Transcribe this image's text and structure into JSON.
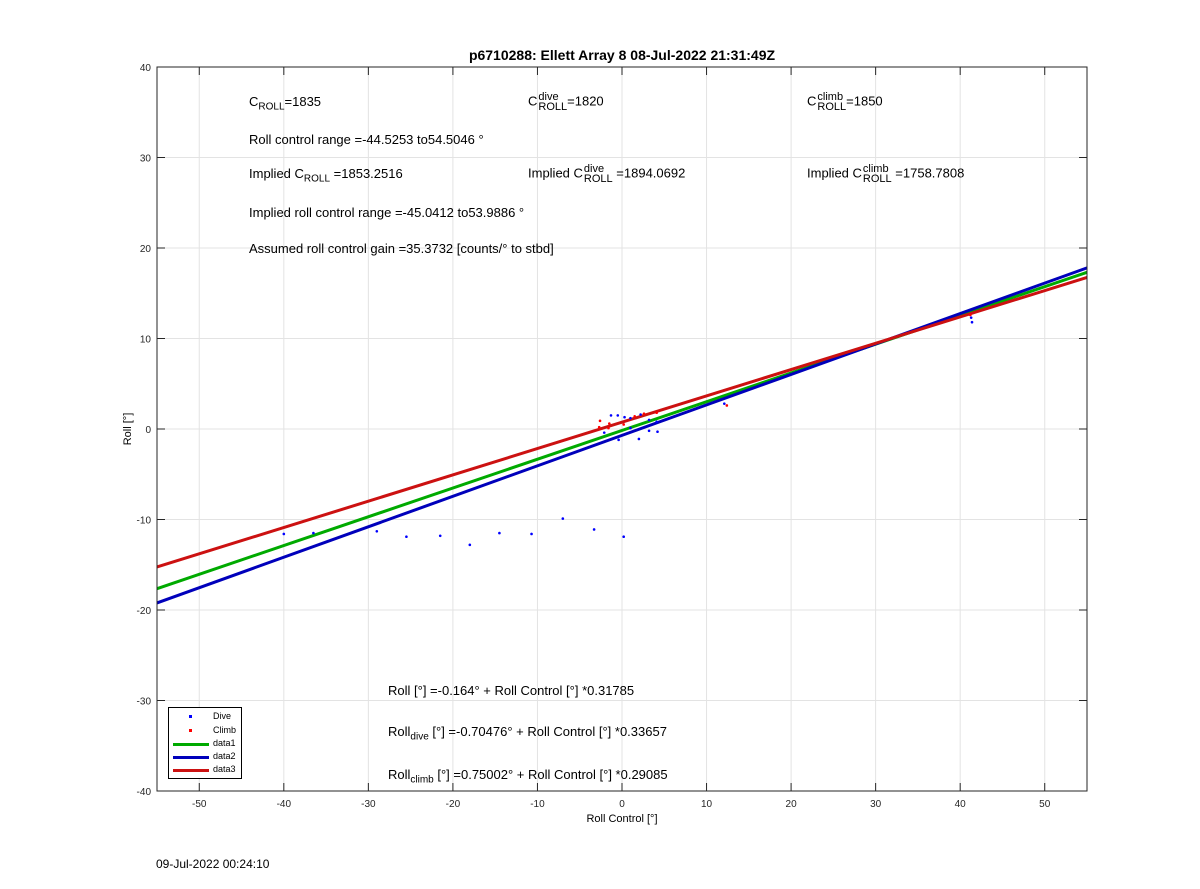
{
  "chart_data": {
    "type": "scatter",
    "title": "p6710288: Ellett Array 8 08-Jul-2022 21:31:49Z",
    "xlabel": "Roll Control [°]",
    "ylabel": "Roll [°]",
    "xlim": [
      -55,
      55
    ],
    "ylim": [
      -40,
      40
    ],
    "xticks": [
      -50,
      -40,
      -30,
      -20,
      -10,
      0,
      10,
      20,
      30,
      40,
      50
    ],
    "yticks": [
      -40,
      -30,
      -20,
      -10,
      0,
      10,
      20,
      30,
      40
    ],
    "grid": true,
    "legend_position": "bottom-left",
    "series": [
      {
        "name": "Dive",
        "kind": "points",
        "color": "#0000ff",
        "points": [
          [
            -40,
            -11.6
          ],
          [
            -36.5,
            -11.5
          ],
          [
            -29,
            -11.3
          ],
          [
            -25.5,
            -11.9
          ],
          [
            -21.5,
            -11.8
          ],
          [
            -18,
            -12.8
          ],
          [
            -14.5,
            -11.5
          ],
          [
            -10.7,
            -11.6
          ],
          [
            -7,
            -9.9
          ],
          [
            -3.3,
            -11.1
          ],
          [
            0.2,
            -11.9
          ],
          [
            -1.3,
            1.5
          ],
          [
            -0.5,
            1.5
          ],
          [
            0.3,
            1.3
          ],
          [
            1,
            1.2
          ],
          [
            2.2,
            1.6
          ],
          [
            3.2,
            1.0
          ],
          [
            4.1,
            0.8
          ],
          [
            -0.4,
            -1.2
          ],
          [
            2,
            -1.1
          ],
          [
            3.2,
            -0.2
          ],
          [
            4.2,
            -0.3
          ],
          [
            -2.1,
            -0.4
          ],
          [
            1,
            0.1
          ],
          [
            12.1,
            2.8
          ],
          [
            41.3,
            12.3
          ],
          [
            41.4,
            11.8
          ]
        ]
      },
      {
        "name": "Climb",
        "kind": "points",
        "color": "#ff0000",
        "points": [
          [
            -2.7,
            0.2
          ],
          [
            -2.6,
            0.9
          ],
          [
            -1.6,
            0.1
          ],
          [
            -1.5,
            0.6
          ],
          [
            0.2,
            0.5
          ],
          [
            1.5,
            1.4
          ],
          [
            2.6,
            1.7
          ],
          [
            4.1,
            1.8
          ],
          [
            12.4,
            2.6
          ],
          [
            41.2,
            12.6
          ]
        ]
      },
      {
        "name": "data1",
        "kind": "line",
        "color": "#00aa00",
        "intercept": -0.164,
        "slope": 0.31785
      },
      {
        "name": "data2",
        "kind": "line",
        "color": "#0000bb",
        "intercept": -0.70476,
        "slope": 0.33657
      },
      {
        "name": "data3",
        "kind": "line",
        "color": "#cc1111",
        "intercept": 0.75002,
        "slope": 0.29085
      }
    ],
    "annotations": {
      "c_roll_label": "C",
      "c_roll_sub": "ROLL",
      "c_roll_value": "=1835",
      "c_dive_label": "C",
      "c_dive_sup": "dive",
      "c_dive_sub": "ROLL",
      "c_dive_value": "=1820",
      "c_climb_label": "C",
      "c_climb_sup": "climb",
      "c_climb_sub": "ROLL",
      "c_climb_value": "=1850",
      "roll_range": "Roll control range =-44.5253 to54.5046 °",
      "implied_c_roll_prefix": "Implied C",
      "implied_c_roll_sub": "ROLL",
      "implied_c_roll_value": " =1853.2516",
      "implied_dive_prefix": "Implied C",
      "implied_dive_sup": "dive",
      "implied_dive_sub": "ROLL",
      "implied_dive_value": " =1894.0692",
      "implied_climb_prefix": "Implied C",
      "implied_climb_sup": "climb",
      "implied_climb_sub": "ROLL",
      "implied_climb_value": " =1758.7808",
      "implied_range": "Implied roll control range =-45.0412 to53.9886 °",
      "gain": "Assumed roll control gain =35.3732 [counts/° to stbd]",
      "fit_all": "Roll [°] =-0.164° + Roll Control [°] *0.31785",
      "fit_dive_prefix": "Roll",
      "fit_dive_sub": "dive",
      "fit_dive_rest": " [°] =-0.70476° + Roll Control [°] *0.33657",
      "fit_climb_prefix": "Roll",
      "fit_climb_sub": "climb",
      "fit_climb_rest": " [°] =0.75002° + Roll Control [°] *0.29085"
    }
  },
  "footer_timestamp": "09-Jul-2022 00:24:10"
}
